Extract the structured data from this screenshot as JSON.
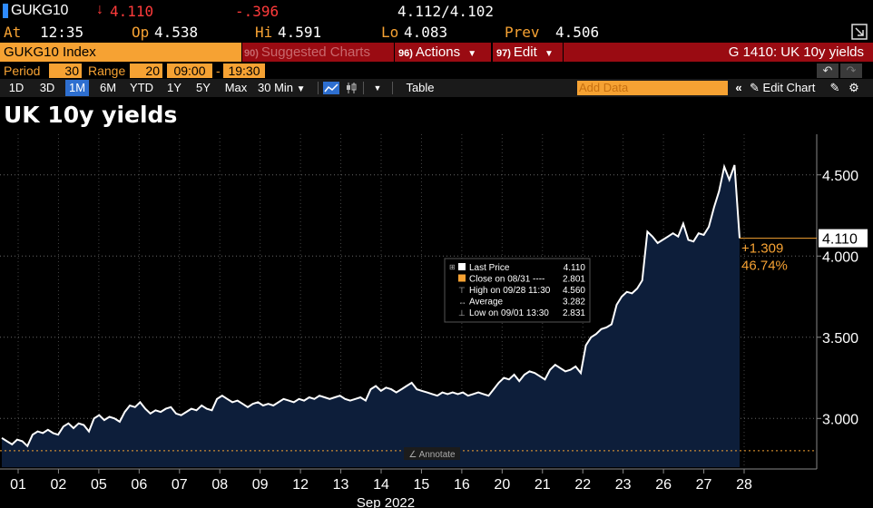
{
  "quote": {
    "ticker": "GUKG10",
    "direction_arrow": "↓",
    "last": "4.110",
    "change": "-.396",
    "bid_ask": "4.112/4.102",
    "at_label": "At",
    "at_value": "12:35",
    "open_label": "Op",
    "open_value": "4.538",
    "high_label": "Hi",
    "high_value": "4.591",
    "low_label": "Lo",
    "low_value": "4.083",
    "prev_label": "Prev",
    "prev_value": "4.506"
  },
  "command_bar": {
    "index_field": "GUKG10 Index",
    "suggested_num": "90)",
    "suggested_label": "Suggested Charts",
    "actions_num": "96)",
    "actions_label": "Actions",
    "edit_num": "97)",
    "edit_label": "Edit",
    "function_title": "G 1410: UK 10y yields"
  },
  "period_row": {
    "period_label": "Period",
    "period_value": "30",
    "range_label": "Range",
    "range_value": "20",
    "time_start": "09:00",
    "time_sep": "-",
    "time_end": "19:30"
  },
  "toolbar": {
    "ranges": [
      "1D",
      "3D",
      "1M",
      "6M",
      "YTD",
      "1Y",
      "5Y",
      "Max"
    ],
    "active_range": "1M",
    "interval": "30 Min",
    "table_label": "Table",
    "add_data_placeholder": "Add Data",
    "edit_chart_label": "Edit Chart"
  },
  "colors": {
    "accent_orange": "#f6a233",
    "bar_red": "#9a0b12",
    "down_red": "#ff3b3b",
    "active_blue": "#2e6fd0",
    "area_fill": "#0d1e3a",
    "line": "#ffffff"
  },
  "legend": {
    "rows": [
      {
        "label": "Last Price",
        "value": "4.110"
      },
      {
        "label": "Close on 08/31 ----",
        "value": "2.801"
      },
      {
        "label": "High on 09/28 11:30",
        "value": "4.560"
      },
      {
        "label": "Average",
        "value": "3.282"
      },
      {
        "label": "Low on 09/01 13:30",
        "value": "2.831"
      }
    ]
  },
  "chart_data": {
    "type": "area",
    "title": "UK 10y yields",
    "xlabel": "Sep 2022",
    "ylabel": "",
    "ylim": [
      2.7,
      4.75
    ],
    "yticks": [
      "3.000",
      "3.500",
      "4.000",
      "4.500"
    ],
    "x_tick_labels": [
      "01",
      "02",
      "05",
      "06",
      "07",
      "08",
      "09",
      "12",
      "13",
      "14",
      "15",
      "16",
      "20",
      "21",
      "22",
      "23",
      "26",
      "27",
      "28"
    ],
    "grid": true,
    "reference_line": {
      "label": "Close on 08/31",
      "value": 2.801
    },
    "last_price_label": "4.110",
    "change_annotation": "+1.309",
    "pct_annotation": "46.74%",
    "annotate_label": "Annotate",
    "series": [
      {
        "name": "Last Price",
        "values": [
          2.88,
          2.86,
          2.84,
          2.87,
          2.86,
          2.83,
          2.9,
          2.92,
          2.91,
          2.93,
          2.91,
          2.9,
          2.95,
          2.97,
          2.94,
          2.97,
          2.96,
          2.92,
          3.0,
          3.02,
          2.99,
          3.01,
          3.0,
          2.98,
          3.04,
          3.08,
          3.07,
          3.1,
          3.06,
          3.03,
          3.05,
          3.04,
          3.06,
          3.07,
          3.03,
          3.02,
          3.04,
          3.06,
          3.05,
          3.08,
          3.06,
          3.05,
          3.12,
          3.14,
          3.12,
          3.1,
          3.11,
          3.09,
          3.07,
          3.09,
          3.1,
          3.08,
          3.09,
          3.08,
          3.1,
          3.12,
          3.11,
          3.1,
          3.12,
          3.11,
          3.13,
          3.12,
          3.14,
          3.13,
          3.12,
          3.13,
          3.14,
          3.12,
          3.11,
          3.12,
          3.13,
          3.11,
          3.18,
          3.2,
          3.17,
          3.19,
          3.18,
          3.16,
          3.18,
          3.2,
          3.22,
          3.18,
          3.17,
          3.16,
          3.15,
          3.14,
          3.16,
          3.15,
          3.16,
          3.15,
          3.16,
          3.14,
          3.15,
          3.16,
          3.15,
          3.14,
          3.18,
          3.22,
          3.25,
          3.24,
          3.27,
          3.23,
          3.27,
          3.29,
          3.28,
          3.26,
          3.24,
          3.3,
          3.33,
          3.31,
          3.29,
          3.3,
          3.32,
          3.28,
          3.45,
          3.5,
          3.52,
          3.55,
          3.56,
          3.58,
          3.7,
          3.75,
          3.78,
          3.77,
          3.8,
          3.85,
          4.15,
          4.12,
          4.08,
          4.1,
          4.12,
          4.14,
          4.12,
          4.2,
          4.1,
          4.09,
          4.14,
          4.13,
          4.18,
          4.3,
          4.4,
          4.55,
          4.47,
          4.56,
          4.11
        ]
      }
    ]
  }
}
